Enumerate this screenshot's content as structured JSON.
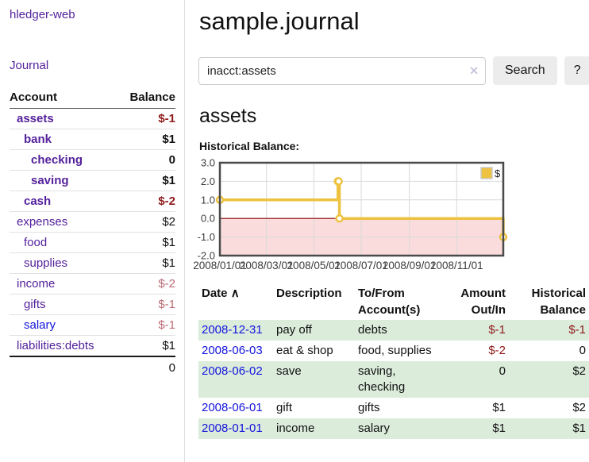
{
  "colors": {
    "purple": "#54219b",
    "blue": "#1414dd",
    "negdark": "#8e1b1b",
    "neglight": "#bc6c75",
    "rowgreen": "#dbecdb",
    "gold": "#edc240",
    "pinkregion": "#fbdcdc",
    "zeroline": "#8b0000",
    "gridline": "#d9d9d9",
    "chartborder": "#4a4a4a",
    "axistext": "#3c3c3c"
  },
  "sidebar": {
    "brand": "hledger-web",
    "journal_link": "Journal",
    "accounts_table": {
      "headers": {
        "account": "Account",
        "balance": "Balance"
      },
      "rows": [
        {
          "name": "assets",
          "balance": "$-1",
          "depth": 1,
          "bold": true,
          "balance_style": "neg",
          "link_color": "purple"
        },
        {
          "name": "bank",
          "balance": "$1",
          "depth": 2,
          "bold": true,
          "balance_style": "plain",
          "link_color": "purple"
        },
        {
          "name": "checking",
          "balance": "0",
          "depth": 3,
          "bold": true,
          "balance_style": "plain",
          "link_color": "purple"
        },
        {
          "name": "saving",
          "balance": "$1",
          "depth": 3,
          "bold": true,
          "balance_style": "plain",
          "link_color": "purple"
        },
        {
          "name": "cash",
          "balance": "$-2",
          "depth": 2,
          "bold": true,
          "balance_style": "neg",
          "link_color": "purple"
        },
        {
          "name": "expenses",
          "balance": "$2",
          "depth": 1,
          "bold": false,
          "balance_style": "plain",
          "link_color": "purple"
        },
        {
          "name": "food",
          "balance": "$1",
          "depth": 2,
          "bold": false,
          "balance_style": "plain",
          "link_color": "purple"
        },
        {
          "name": "supplies",
          "balance": "$1",
          "depth": 2,
          "bold": false,
          "balance_style": "plain",
          "link_color": "purple"
        },
        {
          "name": "income",
          "balance": "$-2",
          "depth": 1,
          "bold": false,
          "balance_style": "neglight",
          "link_color": "purple"
        },
        {
          "name": "gifts",
          "balance": "$-1",
          "depth": 2,
          "bold": false,
          "balance_style": "neglight",
          "link_color": "purple"
        },
        {
          "name": "salary",
          "balance": "$-1",
          "depth": 2,
          "bold": false,
          "balance_style": "neglight",
          "link_color": "blue"
        },
        {
          "name": "liabilities:debts",
          "balance": "$1",
          "depth": 1,
          "bold": false,
          "balance_style": "plain",
          "link_color": "purple"
        }
      ],
      "total": "0"
    }
  },
  "header": {
    "title": "sample.journal"
  },
  "search": {
    "value": "inacct:assets",
    "clear_icon": "✕",
    "button_label": "Search",
    "help_label": "?"
  },
  "account_page": {
    "heading": "assets",
    "chart_label": "Historical Balance:"
  },
  "chart_data": {
    "type": "line",
    "title": "Historical Balance",
    "steps": true,
    "x_range": [
      "2008-01-01",
      "2008-12-31"
    ],
    "ylim": [
      -2,
      3
    ],
    "grid": true,
    "legend_position": "top-right",
    "series": [
      {
        "name": "$",
        "color": "#edc240",
        "points": [
          {
            "date": "2008-01-01",
            "value": 1
          },
          {
            "date": "2008-06-01",
            "value": 2
          },
          {
            "date": "2008-06-02",
            "value": 2
          },
          {
            "date": "2008-06-03",
            "value": 0
          },
          {
            "date": "2008-12-31",
            "value": -1
          }
        ]
      }
    ],
    "x_ticks": [
      {
        "date": "2008-01-01",
        "label": "2008/01/01"
      },
      {
        "date": "2008-03-01",
        "label": "2008/03/01"
      },
      {
        "date": "2008-05-01",
        "label": "2008/05/01"
      },
      {
        "date": "2008-07-01",
        "label": "2008/07/01"
      },
      {
        "date": "2008-09-01",
        "label": "2008/09/01"
      },
      {
        "date": "2008-11-01",
        "label": "2008/11/01"
      }
    ],
    "y_ticks": [
      {
        "value": 3,
        "label": "3.0"
      },
      {
        "value": 2,
        "label": "2.0"
      },
      {
        "value": 1,
        "label": "1.0"
      },
      {
        "value": 0,
        "label": "0.0"
      },
      {
        "value": -1,
        "label": "-1.0"
      },
      {
        "value": -2,
        "label": "-2.0"
      }
    ],
    "negative_region": {
      "from": 0,
      "to": -2
    },
    "legend": {
      "label": "$",
      "swatch_color": "#edc240"
    }
  },
  "register_table": {
    "headers": {
      "date": "Date",
      "sort_icon": "∧",
      "description": "Description",
      "account": "To/From Account(s)",
      "amount": "Amount Out/In",
      "balance": "Historical Balance"
    },
    "rows": [
      {
        "date": "2008-12-31",
        "description": "pay off",
        "account": "debts",
        "amount": "$-1",
        "balance": "$-1",
        "amount_neg": true,
        "balance_neg": true,
        "highlight": true
      },
      {
        "date": "2008-06-03",
        "description": "eat & shop",
        "account": "food, supplies",
        "amount": "$-2",
        "balance": "0",
        "amount_neg": true,
        "balance_neg": false,
        "highlight": false
      },
      {
        "date": "2008-06-02",
        "description": "save",
        "account": "saving, checking",
        "amount": "0",
        "balance": "$2",
        "amount_neg": false,
        "balance_neg": false,
        "highlight": true
      },
      {
        "date": "2008-06-01",
        "description": "gift",
        "account": "gifts",
        "amount": "$1",
        "balance": "$2",
        "amount_neg": false,
        "balance_neg": false,
        "highlight": false
      },
      {
        "date": "2008-01-01",
        "description": "income",
        "account": "salary",
        "amount": "$1",
        "balance": "$1",
        "amount_neg": false,
        "balance_neg": false,
        "highlight": true
      }
    ]
  }
}
